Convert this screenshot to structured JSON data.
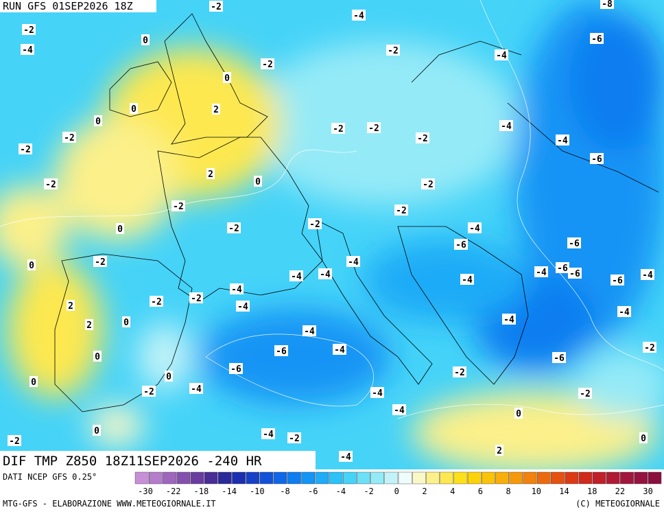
{
  "header": {
    "run": "RUN GFS 01SEP2026 18Z"
  },
  "footer": {
    "title": "DIF TMP Z850 18Z11SEP2026 -240 HR",
    "source": "DATI NCEP GFS 0.25°",
    "credit": "MTG-GFS - ELABORAZIONE WWW.METEOGIORNALE.IT",
    "copyright": "(C) METEOGIORNALE"
  },
  "map": {
    "contour_labels": [
      -2,
      -4,
      -8,
      -2,
      0,
      -6,
      -4,
      -2,
      -4,
      -2,
      0,
      0,
      2,
      0,
      -2,
      -2,
      -4,
      -2,
      -2,
      -4,
      -2,
      -6,
      2,
      0,
      -2,
      -2,
      -2,
      -2,
      -2,
      0,
      -2,
      -4,
      -6,
      -6,
      0,
      -2,
      -4,
      -6,
      -6,
      -4,
      -4,
      -4,
      -4,
      -6,
      -4,
      -4,
      -2,
      -2,
      -4,
      2,
      0,
      -4,
      2,
      -4,
      -4,
      -6,
      -4,
      0,
      -2,
      -6,
      -6,
      0,
      -2,
      0,
      -4,
      -2,
      -4,
      -2,
      -4,
      0,
      0,
      -4,
      -2,
      -2,
      0,
      2,
      -4
    ]
  },
  "legend": {
    "ticks": [
      -30,
      -22,
      -18,
      -14,
      -10,
      -8,
      -6,
      -4,
      -2,
      0,
      2,
      4,
      6,
      8,
      10,
      14,
      18,
      22,
      30
    ],
    "colors": [
      "#c78fd6",
      "#b47ccb",
      "#9f66bd",
      "#8450ad",
      "#6a3ca0",
      "#4a2d96",
      "#2a2a9a",
      "#1b2fb0",
      "#1640c6",
      "#1252d8",
      "#0f66e6",
      "#0d7df0",
      "#1494f5",
      "#1fabf7",
      "#2cc1f8",
      "#45d3f8",
      "#6be0f7",
      "#95eaf7",
      "#c2f3f8",
      "#eefcfb",
      "#fbf8c8",
      "#fcf08a",
      "#fde84f",
      "#fde01a",
      "#fcd20a",
      "#fbc20a",
      "#f8ae0b",
      "#f5990c",
      "#f1820d",
      "#ec6a0f",
      "#e55111",
      "#dc3a14",
      "#cf2a1b",
      "#c0202a",
      "#b01a35",
      "#a2163d",
      "#95133f",
      "#8a1040"
    ]
  }
}
